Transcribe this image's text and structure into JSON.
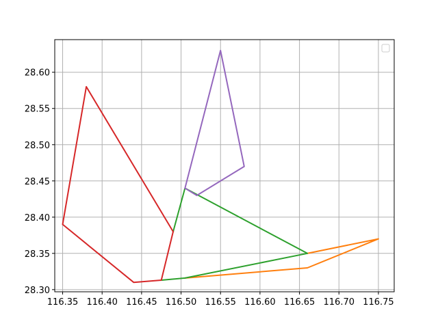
{
  "chart_data": {
    "type": "line",
    "title": "",
    "xlabel": "",
    "ylabel": "",
    "xlim": [
      116.34,
      116.77
    ],
    "ylim": [
      28.297,
      28.645
    ],
    "x_ticks": [
      116.35,
      116.4,
      116.45,
      116.5,
      116.55,
      116.6,
      116.65,
      116.7,
      116.75
    ],
    "y_ticks": [
      28.3,
      28.35,
      28.4,
      28.45,
      28.5,
      28.55,
      28.6
    ],
    "x_tick_labels": [
      "116.35",
      "116.40",
      "116.45",
      "116.50",
      "116.55",
      "116.60",
      "116.65",
      "116.70",
      "116.75"
    ],
    "y_tick_labels": [
      "28.30",
      "28.35",
      "28.40",
      "28.45",
      "28.50",
      "28.55",
      "28.60"
    ],
    "grid": true,
    "legend": {
      "placement": "top-right",
      "entries": []
    },
    "series": [
      {
        "color": "#ff7f0e",
        "x": [
          116.505,
          116.66,
          116.75,
          116.66
        ],
        "y": [
          28.316,
          28.33,
          28.37,
          28.35
        ]
      },
      {
        "color": "#2ca02c",
        "x": [
          116.475,
          116.505,
          116.66,
          116.505,
          116.49
        ],
        "y": [
          28.313,
          28.316,
          28.35,
          28.44,
          28.38
        ]
      },
      {
        "color": "#d62728",
        "x": [
          116.49,
          116.38,
          116.35,
          116.44,
          116.475,
          116.49
        ],
        "y": [
          28.38,
          28.58,
          28.39,
          28.31,
          28.313,
          28.38
        ]
      },
      {
        "color": "#9467bd",
        "x": [
          116.505,
          116.55,
          116.58,
          116.52,
          116.505
        ],
        "y": [
          28.44,
          28.63,
          28.47,
          28.43,
          28.44
        ]
      }
    ]
  }
}
